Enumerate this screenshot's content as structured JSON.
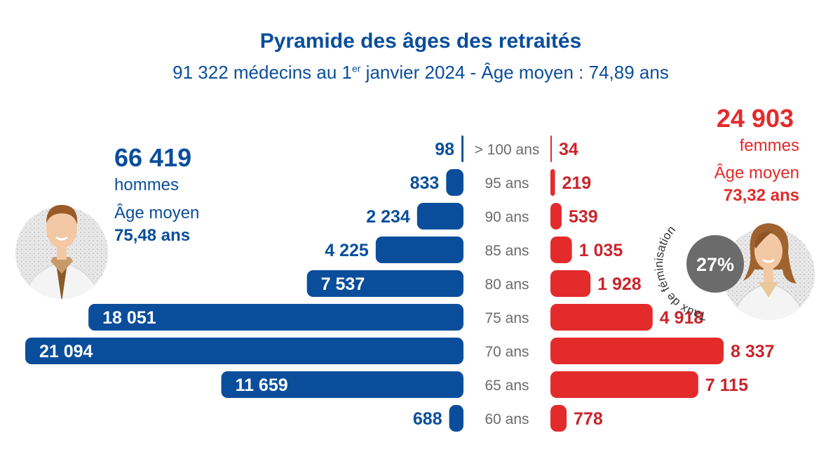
{
  "title": "Pyramide des âges des retraités",
  "subtitle": {
    "before": "91 322 médecins au 1",
    "sup": "er",
    "after": " janvier 2024 - Âge moyen : 74,89 ans"
  },
  "men": {
    "total": "66 419",
    "word": "hommes",
    "avg_label": "Âge moyen",
    "avg_value": "75,48 ans",
    "color": "#0a4e9b",
    "icon": "male-doctor-icon"
  },
  "women": {
    "total": "24 903",
    "word": "femmes",
    "avg_label": "Âge moyen",
    "avg_value": "73,32 ans",
    "color": "#e32b2b",
    "icon": "female-doctor-icon"
  },
  "feminisation": {
    "label": "Taux de féminisation",
    "value": "27%",
    "color": "#6b6b6b"
  },
  "chart_data": {
    "type": "bar",
    "orientation": "horizontal-pyramid",
    "categories": [
      "> 100 ans",
      "95 ans",
      "90 ans",
      "85 ans",
      "80 ans",
      "75 ans",
      "70 ans",
      "65 ans",
      "60 ans"
    ],
    "series": [
      {
        "name": "hommes",
        "color": "#0a4e9b",
        "values": [
          98,
          833,
          2234,
          4225,
          7537,
          18051,
          21094,
          11659,
          688
        ],
        "labels": [
          "98",
          "833",
          "2 234",
          "4 225",
          "7 537",
          "18 051",
          "21 094",
          "11 659",
          "688"
        ]
      },
      {
        "name": "femmes",
        "color": "#e32b2b",
        "values": [
          34,
          219,
          539,
          1035,
          1928,
          4918,
          8337,
          7115,
          778
        ],
        "labels": [
          "34",
          "219",
          "539",
          "1 035",
          "1 928",
          "4 918",
          "8 337",
          "7 115",
          "778"
        ]
      }
    ]
  }
}
